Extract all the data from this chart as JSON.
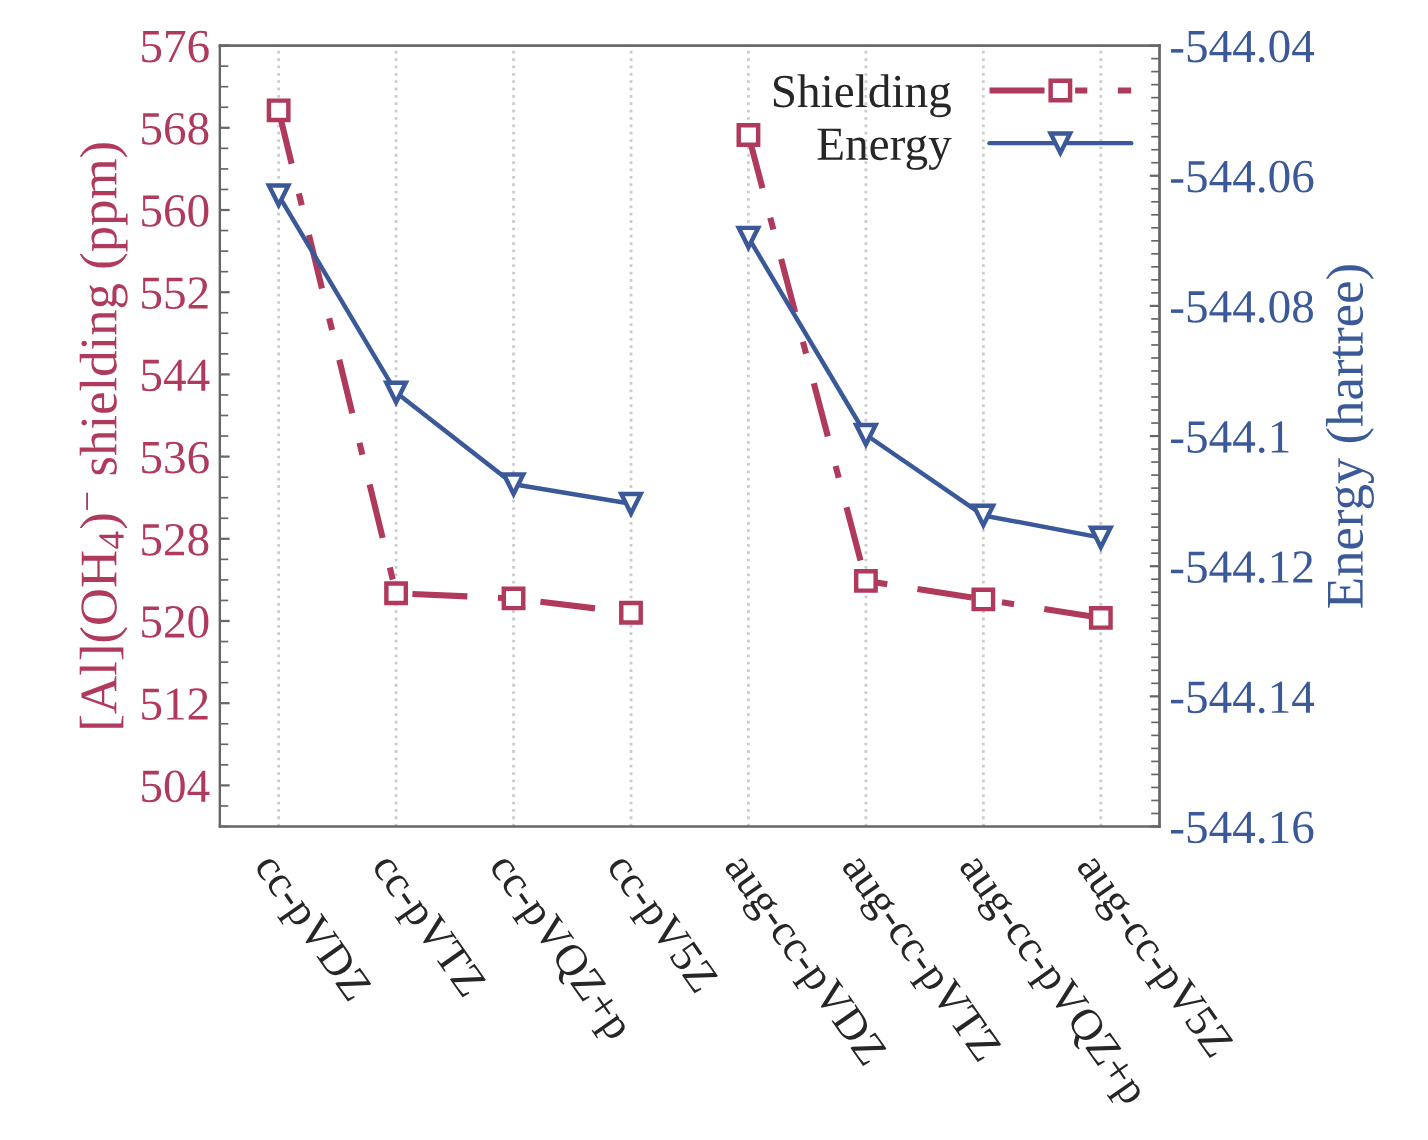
{
  "chart_data": {
    "type": "line",
    "categories": [
      "cc-pVDZ",
      "cc-pVTZ",
      "cc-pVQZ+p",
      "cc-pV5Z",
      "aug-cc-pVDZ",
      "aug-cc-pVTZ",
      "aug-cc-pVQZ+p",
      "aug-cc-pV5Z"
    ],
    "ylabel": "[Al](OH$_{4}$)$^{−}$ shielding (ppm)",
    "y2label": "Energy (hartree)",
    "ylim": [
      500,
      576
    ],
    "yticks": [
      504,
      512,
      520,
      528,
      536,
      544,
      552,
      560,
      568,
      576
    ],
    "y2lim": [
      -544.16,
      -544.04
    ],
    "y2ticks": [
      -544.16,
      -544.14,
      -544.12,
      -544.1,
      -544.08,
      -544.06,
      -544.04
    ],
    "grid": "x",
    "legend": "top right",
    "series": [
      {
        "name": "Shielding",
        "color": "#b03a5b",
        "marker": "square",
        "line_style": "dashdot",
        "values": [
          569.7,
          522.7,
          522.2,
          520.8,
          null,
          null,
          null,
          null
        ]
      },
      {
        "color": "#b03a5b",
        "marker": "square",
        "line_style": "dashdot",
        "values": [
          null,
          null,
          null,
          null,
          567.3,
          523.9,
          522.1,
          520.3
        ]
      },
      {
        "name": "Energy",
        "color": "#3b5998",
        "marker": "triangle",
        "line_style": "solid",
        "axis": "y2",
        "values": [
          -544.063,
          -544.0933,
          -544.1074,
          -544.1104,
          null,
          null,
          null,
          null
        ]
      },
      {
        "color": "#3b5998",
        "marker": "triangle",
        "line_style": "solid",
        "axis": "y2",
        "values": [
          null,
          null,
          null,
          null,
          -544.0695,
          -544.0998,
          -544.1122,
          -544.1156
        ]
      }
    ]
  }
}
